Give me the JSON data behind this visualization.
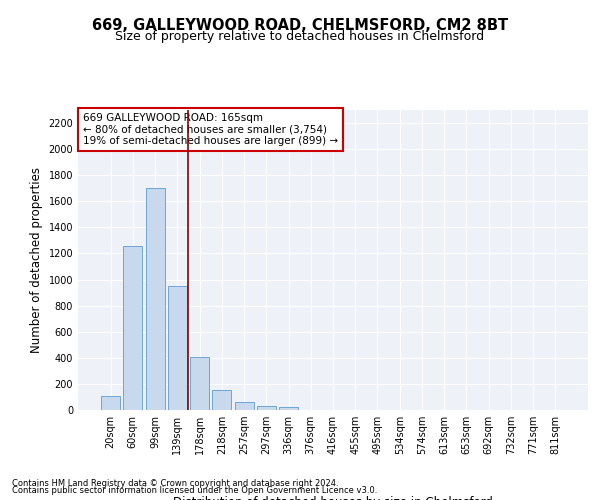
{
  "title": "669, GALLEYWOOD ROAD, CHELMSFORD, CM2 8BT",
  "subtitle": "Size of property relative to detached houses in Chelmsford",
  "xlabel": "Distribution of detached houses by size in Chelmsford",
  "ylabel": "Number of detached properties",
  "categories": [
    "20sqm",
    "60sqm",
    "99sqm",
    "139sqm",
    "178sqm",
    "218sqm",
    "257sqm",
    "297sqm",
    "336sqm",
    "376sqm",
    "416sqm",
    "455sqm",
    "495sqm",
    "534sqm",
    "574sqm",
    "613sqm",
    "653sqm",
    "692sqm",
    "732sqm",
    "771sqm",
    "811sqm"
  ],
  "values": [
    105,
    1260,
    1700,
    950,
    410,
    150,
    65,
    30,
    20,
    0,
    0,
    0,
    0,
    0,
    0,
    0,
    0,
    0,
    0,
    0,
    0
  ],
  "bar_color": "#c8d9ed",
  "bar_edge_color": "#5b9bd5",
  "vline_color": "#8b0000",
  "annotation_text": "669 GALLEYWOOD ROAD: 165sqm\n← 80% of detached houses are smaller (3,754)\n19% of semi-detached houses are larger (899) →",
  "annotation_box_color": "white",
  "annotation_box_edge": "#cc0000",
  "footnote1": "Contains HM Land Registry data © Crown copyright and database right 2024.",
  "footnote2": "Contains public sector information licensed under the Open Government Licence v3.0.",
  "ylim": [
    0,
    2300
  ],
  "yticks": [
    0,
    200,
    400,
    600,
    800,
    1000,
    1200,
    1400,
    1600,
    1800,
    2000,
    2200
  ],
  "background_color": "#eef2f8",
  "grid_color": "#ffffff",
  "title_fontsize": 10.5,
  "subtitle_fontsize": 9,
  "axis_label_fontsize": 8.5,
  "tick_fontsize": 7,
  "annot_fontsize": 7.5
}
